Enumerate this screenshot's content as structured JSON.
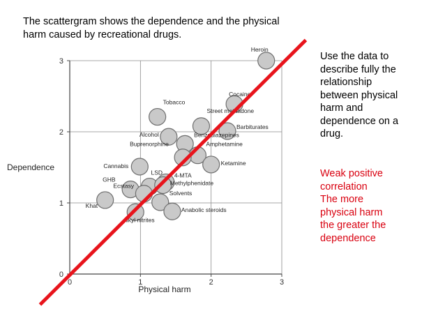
{
  "slide": {
    "intro_lines": [
      "The scattergram shows the dependence and the physical",
      "harm caused by recreational drugs."
    ],
    "question_lines": [
      "Use the data to",
      "describe fully the",
      "relationship",
      "between physical",
      "harm and",
      "dependence on a",
      "drug."
    ],
    "answer_lines": [
      "Weak positive",
      "correlation",
      "The more",
      "physical harm",
      "the greater the",
      "dependence"
    ]
  },
  "colors": {
    "trend_line": "#e8141c",
    "point_fill": "#c9c9c9",
    "point_stroke": "#6e6e6e",
    "answer_text": "#d9000f"
  },
  "chart_data": {
    "type": "scatter",
    "xlabel": "Physical harm",
    "ylabel": "Dependence",
    "xlim": [
      0,
      3
    ],
    "ylim": [
      0,
      3
    ],
    "xticks": [
      "0",
      "1",
      "2",
      "3"
    ],
    "yticks": [
      "0",
      "1",
      "2",
      "3"
    ],
    "grid": true,
    "points": [
      {
        "label": "Heroin",
        "x": 2.78,
        "y": 3.0
      },
      {
        "label": "Cocaine",
        "x": 2.33,
        "y": 2.39
      },
      {
        "label": "Tobacco",
        "x": 1.24,
        "y": 2.21
      },
      {
        "label": "Street methadone",
        "x": 1.86,
        "y": 2.08
      },
      {
        "label": "Barbiturates",
        "x": 2.23,
        "y": 2.01
      },
      {
        "label": "Alcohol",
        "x": 1.4,
        "y": 1.93
      },
      {
        "label": "Benzodiazepines",
        "x": 1.63,
        "y": 1.83
      },
      {
        "label": "Amphetamine",
        "x": 1.81,
        "y": 1.67
      },
      {
        "label": "Buprenorphine",
        "x": 1.6,
        "y": 1.64
      },
      {
        "label": "Ketamine",
        "x": 2.0,
        "y": 1.54
      },
      {
        "label": "Cannabis",
        "x": 0.99,
        "y": 1.51
      },
      {
        "label": "LSD",
        "x": 1.13,
        "y": 1.23
      },
      {
        "label": "4-MTA",
        "x": 1.36,
        "y": 1.29
      },
      {
        "label": "GHB",
        "x": 0.86,
        "y": 1.19
      },
      {
        "label": "Ecstasy",
        "x": 1.05,
        "y": 1.13
      },
      {
        "label": "Methylphenidate",
        "x": 1.32,
        "y": 1.25
      },
      {
        "label": "Solvents",
        "x": 1.28,
        "y": 1.01
      },
      {
        "label": "Khat",
        "x": 0.5,
        "y": 1.04
      },
      {
        "label": "Anabolic steroids",
        "x": 1.45,
        "y": 0.88
      },
      {
        "label": "Alkyl nitrites",
        "x": 0.93,
        "y": 0.87
      }
    ],
    "trend_line": {
      "from": [
        -0.42,
        -0.43
      ],
      "to": [
        3.34,
        3.29
      ]
    }
  }
}
